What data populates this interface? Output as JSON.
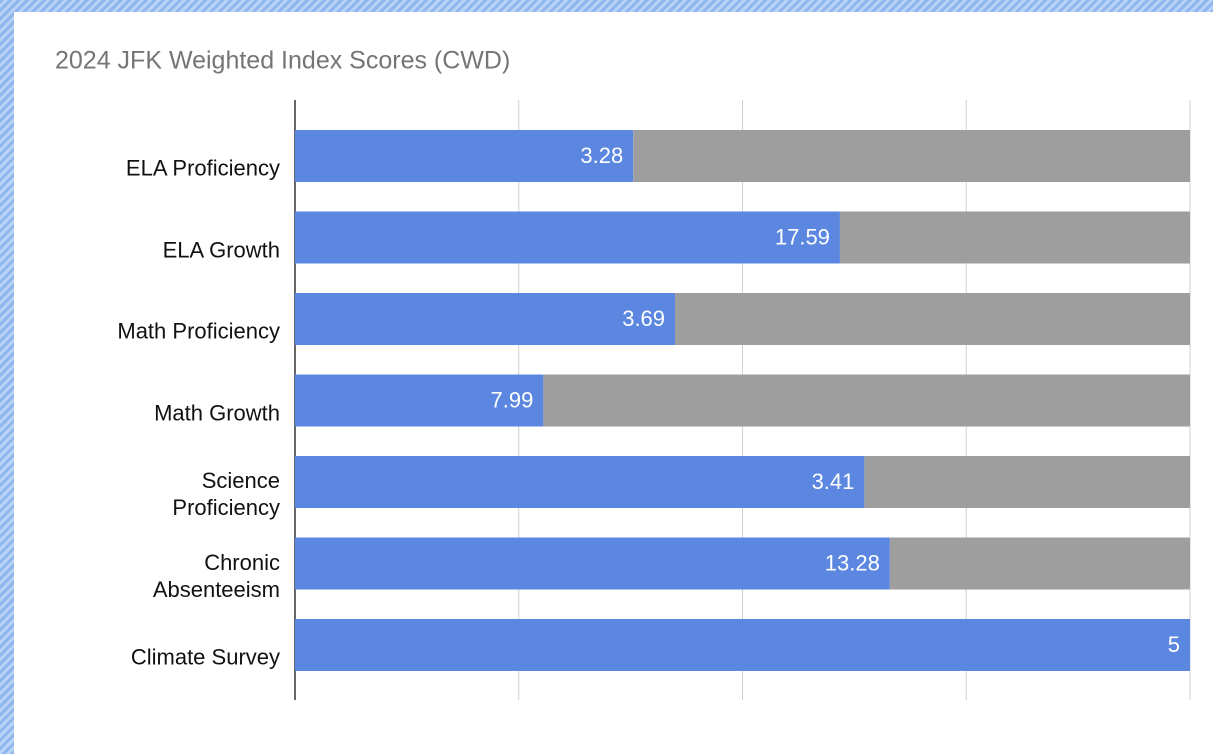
{
  "chart_data": {
    "type": "bar",
    "orientation": "horizontal",
    "stacked": "percent",
    "title": "2024 JFK Weighted Index Scores (CWD)",
    "categories": [
      "ELA Proficiency",
      "ELA Growth",
      "Math Proficiency",
      "Math Growth",
      "Science\nProficiency",
      "Chronic\nAbsenteeism",
      "Climate Survey"
    ],
    "series": [
      {
        "color": "#5b87e1",
        "values": [
          3.28,
          17.59,
          3.69,
          7.99,
          3.41,
          13.28,
          5
        ],
        "data_labels": true
      },
      {
        "color": "#9e9e9e",
        "values": [
          5.4,
          11.3,
          5.0,
          20.8,
          1.95,
          6.7,
          0
        ],
        "data_labels": false
      }
    ],
    "xlim": [
      0,
      100
    ],
    "xticks": [
      0,
      25,
      50,
      75,
      100
    ],
    "tick_labels": false,
    "grid": true
  }
}
